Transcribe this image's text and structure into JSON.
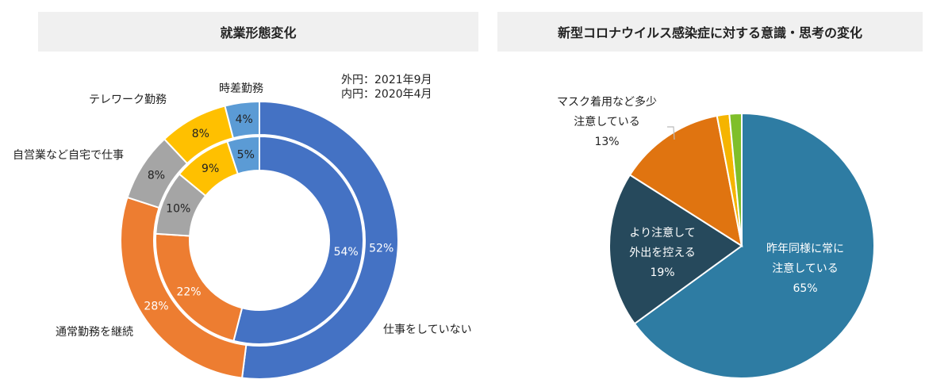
{
  "left_panel": {
    "title": "就業形態変化"
  },
  "right_panel": {
    "title": "新型コロナウイルス感染症に対する意識・思考の変化"
  },
  "legend_note": {
    "outer": "外円：2021年9月",
    "inner": "内円：2020年4月"
  },
  "chart_data": [
    {
      "type": "donut",
      "title": "就業形態変化",
      "categories": [
        "仕事をしていない",
        "通常勤務を継続",
        "自営業など自宅で仕事",
        "テレワーク勤務",
        "時差勤務"
      ],
      "colors": [
        "#4472c4",
        "#ed7d31",
        "#a5a5a5",
        "#ffc000",
        "#5b9bd5"
      ],
      "series": [
        {
          "name": "外円：2021年9月",
          "values": [
            52,
            28,
            8,
            8,
            4
          ],
          "labels": [
            "52%",
            "28%",
            "8%",
            "8%",
            "4%"
          ]
        },
        {
          "name": "内円：2020年4月",
          "values": [
            54,
            22,
            10,
            9,
            5
          ],
          "labels": [
            "54%",
            "22%",
            "10%",
            "9%",
            "5%"
          ]
        }
      ]
    },
    {
      "type": "pie",
      "title": "新型コロナウイルス感染症に対する意識・思考の変化",
      "categories": [
        "昨年同様に常に注意している",
        "より注意して外出を控える",
        "マスク着用など多少注意している",
        "",
        ""
      ],
      "values": [
        65,
        19,
        13,
        1.5,
        1.5
      ],
      "colors": [
        "#2e7ca3",
        "#26495c",
        "#e07410",
        "#f5b400",
        "#7fbf2a"
      ],
      "data_labels": [
        [
          "昨年同様に常に",
          "注意している",
          "65%"
        ],
        [
          "より注意して",
          "外出を控える",
          "19%"
        ],
        [
          "マスク着用など多少",
          "注意している",
          "13%"
        ]
      ]
    }
  ]
}
